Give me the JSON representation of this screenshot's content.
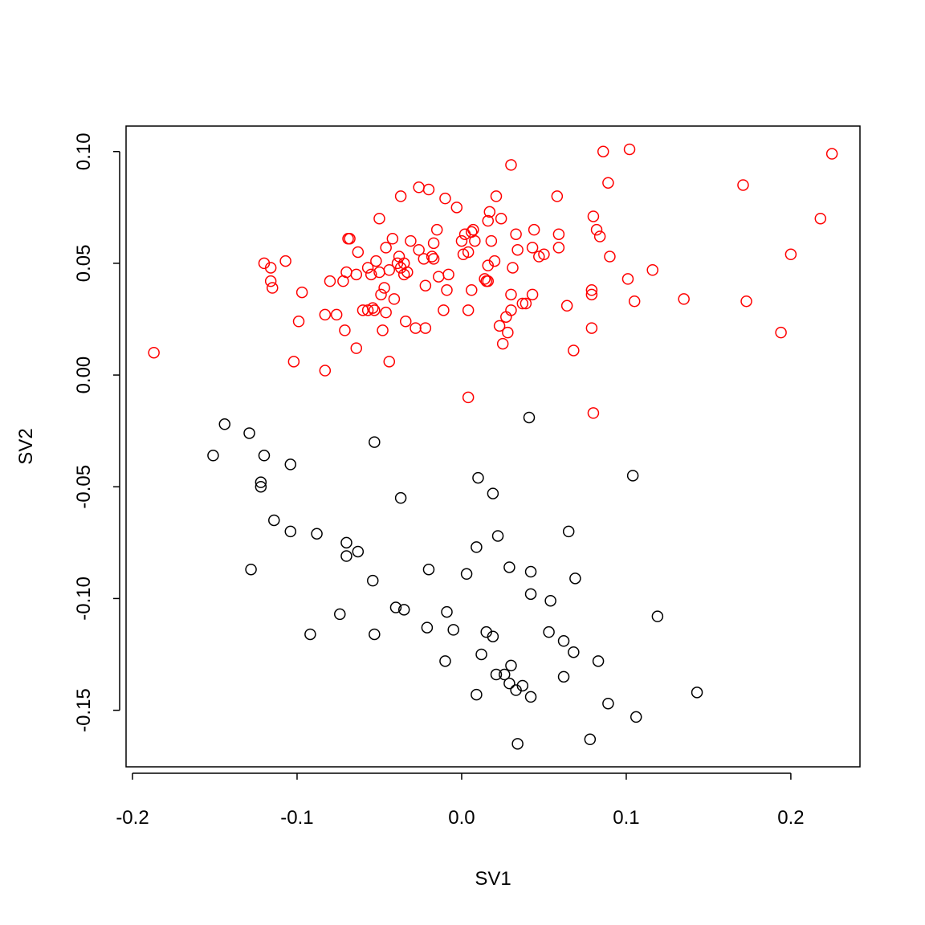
{
  "chart_data": {
    "type": "scatter",
    "x_label": "SV1",
    "y_label": "SV2",
    "xlim": [
      -0.2039,
      0.242
    ],
    "ylim": [
      -0.1753,
      0.1114
    ],
    "xticks": [
      -0.2,
      -0.1,
      {
        "value": 0,
        "label": "0.0"
      },
      0.1,
      0.2
    ],
    "yticks": [
      {
        "value": -0.15,
        "label": "-0.15"
      },
      {
        "value": -0.1,
        "label": "-0.10"
      },
      {
        "value": -0.05,
        "label": "-0.05"
      },
      {
        "value": 0,
        "label": "0.00"
      },
      {
        "value": 0.05,
        "label": "0.05"
      },
      {
        "value": 0.1,
        "label": "0.10"
      }
    ],
    "grid": false,
    "series": [
      {
        "color": "#ff0000",
        "x": [
          -0.187,
          -0.12,
          -0.116,
          -0.116,
          -0.115,
          -0.107,
          -0.097,
          -0.099,
          -0.102,
          -0.083,
          -0.083,
          -0.08,
          -0.076,
          -0.072,
          -0.07,
          -0.069,
          -0.068,
          -0.071,
          -0.064,
          -0.063,
          -0.064,
          -0.06,
          -0.057,
          -0.055,
          -0.057,
          -0.054,
          -0.053,
          -0.052,
          -0.05,
          -0.05,
          -0.049,
          -0.048,
          -0.047,
          -0.046,
          -0.046,
          -0.044,
          -0.044,
          -0.042,
          -0.041,
          -0.039,
          -0.038,
          -0.037,
          -0.037,
          -0.035,
          -0.035,
          -0.034,
          -0.033,
          -0.031,
          -0.028,
          -0.026,
          -0.026,
          -0.023,
          -0.022,
          -0.022,
          -0.02,
          -0.018,
          -0.017,
          -0.017,
          -0.015,
          -0.014,
          -0.011,
          -0.01,
          -0.009,
          -0.008,
          -0.003,
          0.0,
          0.002,
          0.001,
          0.004,
          0.004,
          0.004,
          0.006,
          0.006,
          0.007,
          0.008,
          0.014,
          0.015,
          0.016,
          0.016,
          0.016,
          0.017,
          0.018,
          0.02,
          0.021,
          0.023,
          0.024,
          0.025,
          0.027,
          0.028,
          0.03,
          0.03,
          0.03,
          0.031,
          0.033,
          0.034,
          0.037,
          0.039,
          0.043,
          0.043,
          0.044,
          0.047,
          0.05,
          0.058,
          0.059,
          0.059,
          0.064,
          0.068,
          0.08,
          0.079,
          0.079,
          0.079,
          0.08,
          0.082,
          0.084,
          0.086,
          0.089,
          0.09,
          0.101,
          0.102,
          0.105,
          0.116,
          0.135,
          0.171,
          0.173,
          0.194,
          0.2,
          0.218,
          0.225
        ],
        "y": [
          0.01,
          0.05,
          0.048,
          0.042,
          0.039,
          0.051,
          0.037,
          0.024,
          0.006,
          0.027,
          0.002,
          0.042,
          0.027,
          0.042,
          0.046,
          0.061,
          0.061,
          0.02,
          0.045,
          0.055,
          0.012,
          0.029,
          0.048,
          0.045,
          0.029,
          0.03,
          0.029,
          0.051,
          0.07,
          0.046,
          0.036,
          0.02,
          0.039,
          0.057,
          0.028,
          0.006,
          0.047,
          0.061,
          0.034,
          0.05,
          0.053,
          0.08,
          0.048,
          0.05,
          0.045,
          0.024,
          0.046,
          0.06,
          0.021,
          0.056,
          0.084,
          0.052,
          0.04,
          0.021,
          0.083,
          0.053,
          0.052,
          0.059,
          0.065,
          0.044,
          0.029,
          0.079,
          0.038,
          0.045,
          0.075,
          0.06,
          0.063,
          0.054,
          0.029,
          -0.01,
          0.055,
          0.064,
          0.038,
          0.065,
          0.06,
          0.043,
          0.042,
          0.042,
          0.069,
          0.049,
          0.073,
          0.06,
          0.051,
          0.08,
          0.022,
          0.07,
          0.014,
          0.026,
          0.019,
          0.094,
          0.036,
          0.029,
          0.048,
          0.063,
          0.056,
          0.032,
          0.032,
          0.036,
          0.057,
          0.065,
          0.053,
          0.054,
          0.08,
          0.063,
          0.057,
          0.031,
          0.011,
          0.071,
          0.038,
          0.036,
          0.021,
          -0.017,
          0.065,
          0.062,
          0.1,
          0.086,
          0.053,
          0.043,
          0.101,
          0.033,
          0.047,
          0.034,
          0.085,
          0.033,
          0.019,
          0.054,
          0.07,
          0.099
        ]
      },
      {
        "color": "#000000",
        "x": [
          -0.144,
          -0.151,
          -0.129,
          -0.12,
          -0.122,
          -0.122,
          -0.128,
          -0.114,
          -0.104,
          -0.104,
          -0.092,
          -0.088,
          -0.074,
          -0.07,
          -0.07,
          -0.063,
          -0.053,
          -0.054,
          -0.053,
          -0.04,
          -0.037,
          -0.035,
          -0.02,
          -0.021,
          -0.01,
          -0.009,
          -0.005,
          0.003,
          0.009,
          0.01,
          0.009,
          0.012,
          0.015,
          0.019,
          0.019,
          0.022,
          0.021,
          0.026,
          0.029,
          0.03,
          0.029,
          0.034,
          0.033,
          0.037,
          0.041,
          0.042,
          0.042,
          0.042,
          0.054,
          0.053,
          0.062,
          0.062,
          0.065,
          0.068,
          0.069,
          0.078,
          0.083,
          0.089,
          0.104,
          0.106,
          0.119,
          0.143
        ],
        "y": [
          -0.022,
          -0.036,
          -0.026,
          -0.036,
          -0.048,
          -0.05,
          -0.087,
          -0.065,
          -0.04,
          -0.07,
          -0.116,
          -0.071,
          -0.107,
          -0.075,
          -0.081,
          -0.079,
          -0.03,
          -0.092,
          -0.116,
          -0.104,
          -0.055,
          -0.105,
          -0.087,
          -0.113,
          -0.128,
          -0.106,
          -0.114,
          -0.089,
          -0.077,
          -0.046,
          -0.143,
          -0.125,
          -0.115,
          -0.053,
          -0.117,
          -0.072,
          -0.134,
          -0.134,
          -0.138,
          -0.13,
          -0.086,
          -0.165,
          -0.141,
          -0.139,
          -0.019,
          -0.144,
          -0.088,
          -0.098,
          -0.101,
          -0.115,
          -0.119,
          -0.135,
          -0.07,
          -0.124,
          -0.091,
          -0.163,
          -0.128,
          -0.147,
          -0.045,
          -0.153,
          -0.108,
          -0.142
        ]
      }
    ]
  }
}
